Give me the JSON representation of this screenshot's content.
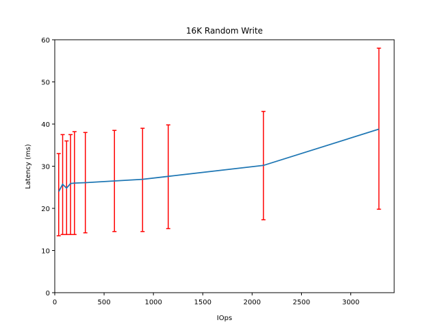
{
  "chart_data": {
    "type": "line",
    "title": "16K  Random Write",
    "xlabel": "IOps",
    "ylabel": "Latency (ms)",
    "xlim": [
      0,
      3440
    ],
    "ylim": [
      0,
      60
    ],
    "xticks": [
      0,
      500,
      1000,
      1500,
      2000,
      2500,
      3000
    ],
    "yticks": [
      0,
      10,
      20,
      30,
      40,
      50,
      60
    ],
    "grid": false,
    "series": [
      {
        "color": "#1f77b4",
        "x": [
          40,
          80,
          120,
          160,
          200,
          310,
          605,
          890,
          1150,
          2115,
          3285
        ],
        "y": [
          24.0,
          25.7,
          24.8,
          25.9,
          26.0,
          26.1,
          26.5,
          26.9,
          27.6,
          30.2,
          38.8
        ]
      }
    ],
    "error_bars": {
      "color": "#ff0000",
      "x": [
        40,
        80,
        120,
        160,
        200,
        310,
        605,
        890,
        1150,
        2115,
        3285
      ],
      "low": [
        13.5,
        13.8,
        13.8,
        13.8,
        13.8,
        14.2,
        14.5,
        14.5,
        15.2,
        17.3,
        19.8
      ],
      "high": [
        33.0,
        37.5,
        36.0,
        37.5,
        38.2,
        38.0,
        38.5,
        39.0,
        39.8,
        43.0,
        58.0
      ]
    }
  }
}
